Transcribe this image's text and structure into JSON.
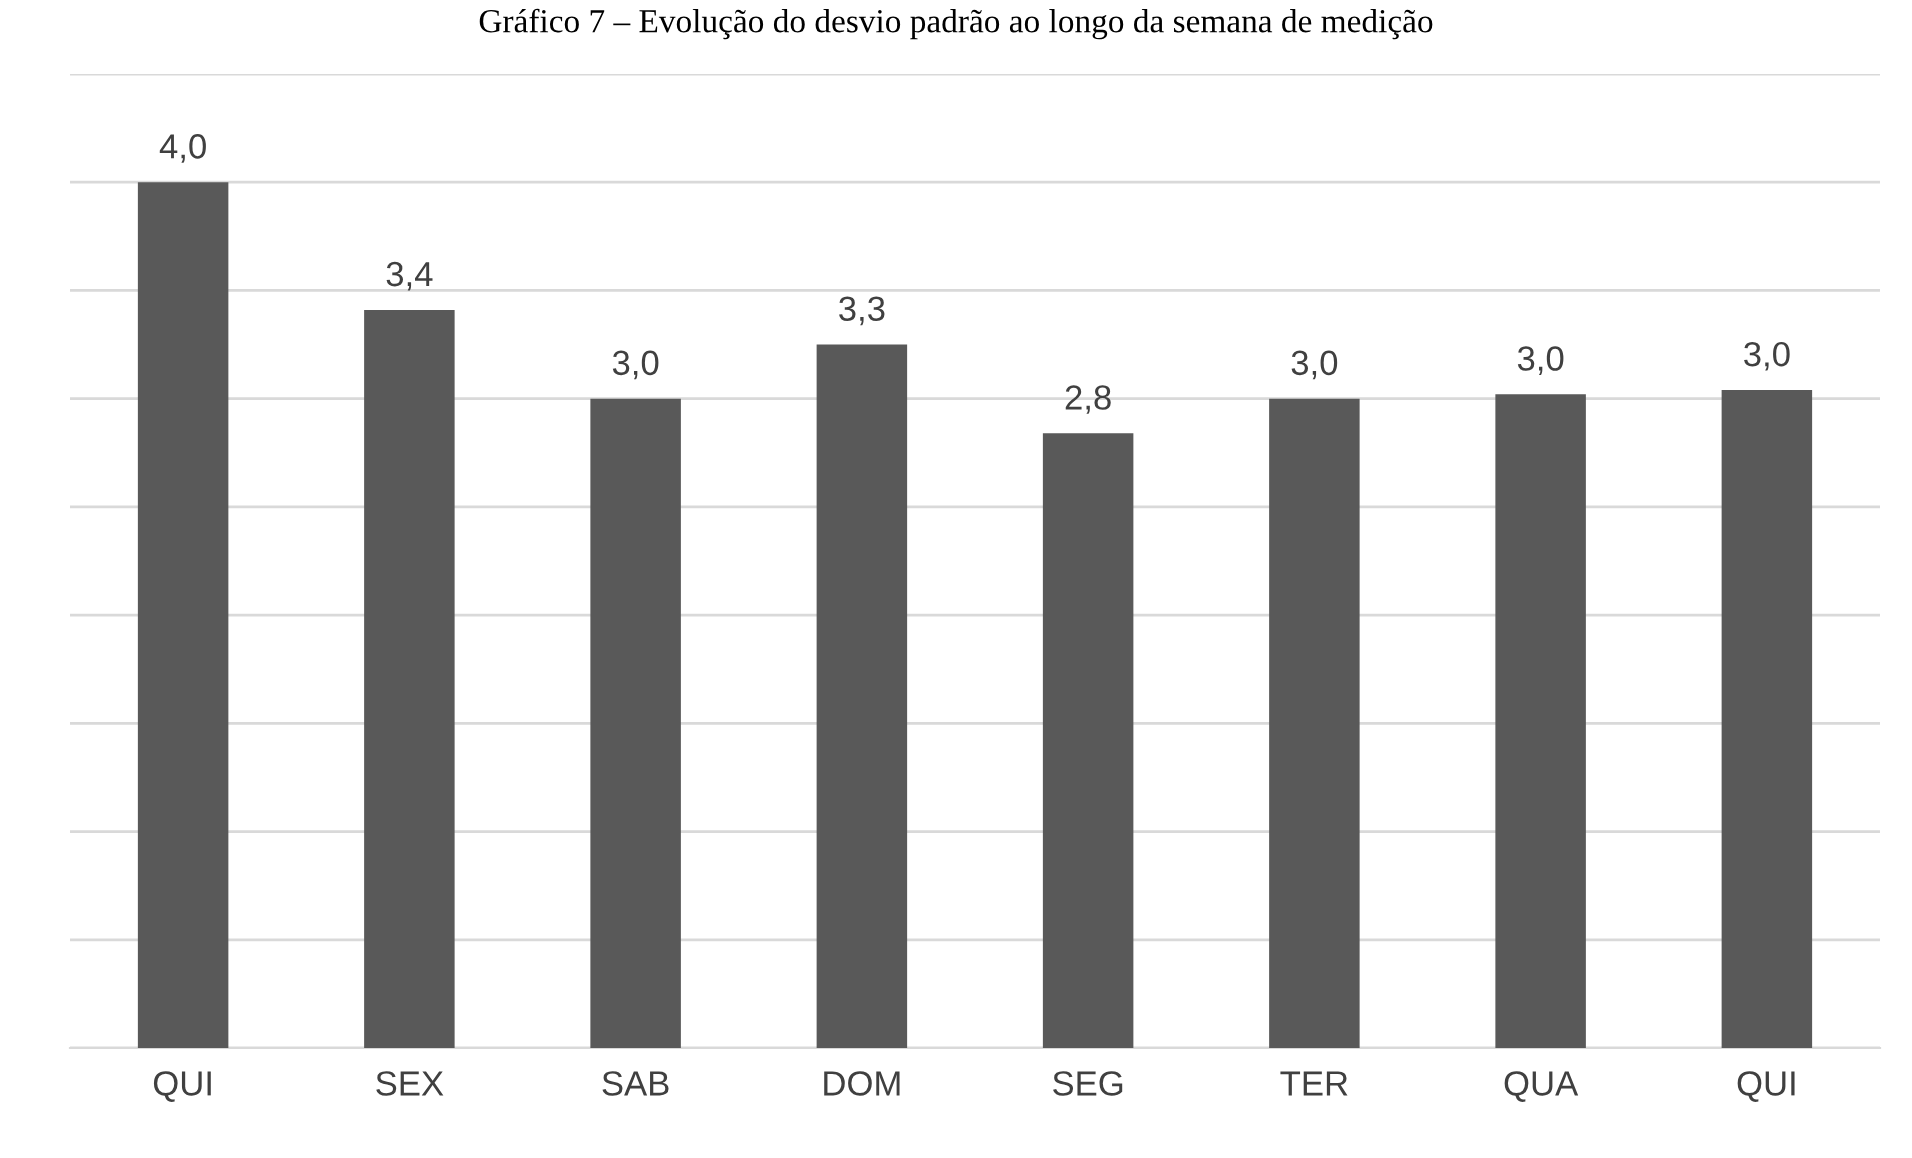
{
  "chart_data": {
    "type": "bar",
    "title": "Gráfico 7 – Evolução do desvio padrão ao longo da semana de medição",
    "categories": [
      "QUI",
      "SEX",
      "SAB",
      "DOM",
      "SEG",
      "TER",
      "QUA",
      "QUI"
    ],
    "values": [
      4.0,
      3.41,
      3.0,
      3.25,
      2.84,
      3.0,
      3.02,
      3.04
    ],
    "value_labels": [
      "4,0",
      "3,4",
      "3,0",
      "3,3",
      "2,8",
      "3,0",
      "3,0",
      "3,0"
    ],
    "color": "#595959",
    "ylim": [
      0,
      4.5
    ],
    "yticks": [
      {
        "value": 0,
        "label": null
      },
      {
        "value": 0.5,
        "label": null
      },
      {
        "value": 1,
        "label": null
      },
      {
        "value": 1.5,
        "label": null
      },
      {
        "value": 2,
        "label": null
      },
      {
        "value": 2.5,
        "label": null
      },
      {
        "value": 3,
        "label": null
      },
      {
        "value": 3.5,
        "label": null
      },
      {
        "value": 4,
        "label": null
      },
      {
        "value": 4.5,
        "label": null
      }
    ],
    "grid": "y",
    "tick_labels": "x"
  }
}
